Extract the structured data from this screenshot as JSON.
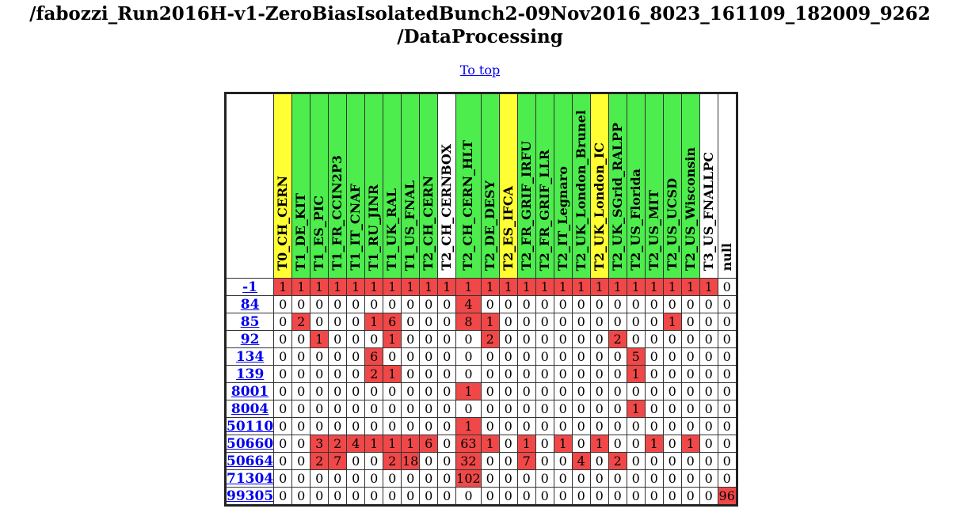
{
  "page": {
    "title_line1": "/fabozzi_Run2016H-v1-ZeroBiasIsolatedBunch2-09Nov2016_8023_161109_182009_9262",
    "title_line2": "/DataProcessing",
    "to_top_link": "To top"
  },
  "colors": {
    "tier0": "#ffff33",
    "green": "#4ced4c",
    "white": "#ffffff",
    "error_cell": "#f04848",
    "link": "#0000ee"
  },
  "sites": [
    {
      "name": "T0_CH_CERN",
      "color": "#ffff33"
    },
    {
      "name": "T1_DE_KIT",
      "color": "#4ced4c"
    },
    {
      "name": "T1_ES_PIC",
      "color": "#4ced4c"
    },
    {
      "name": "T1_FR_CCIN2P3",
      "color": "#4ced4c"
    },
    {
      "name": "T1_IT_CNAF",
      "color": "#4ced4c"
    },
    {
      "name": "T1_RU_JINR",
      "color": "#4ced4c"
    },
    {
      "name": "T1_UK_RAL",
      "color": "#4ced4c"
    },
    {
      "name": "T1_US_FNAL",
      "color": "#4ced4c"
    },
    {
      "name": "T2_CH_CERN",
      "color": "#4ced4c"
    },
    {
      "name": "T2_CH_CERNBOX",
      "color": "#ffffff"
    },
    {
      "name": "T2_CH_CERN_HLT",
      "color": "#4ced4c"
    },
    {
      "name": "T2_DE_DESY",
      "color": "#4ced4c"
    },
    {
      "name": "T2_ES_IFCA",
      "color": "#ffff33"
    },
    {
      "name": "T2_FR_GRIF_IRFU",
      "color": "#4ced4c"
    },
    {
      "name": "T2_FR_GRIF_LLR",
      "color": "#4ced4c"
    },
    {
      "name": "T2_IT_Legnaro",
      "color": "#4ced4c"
    },
    {
      "name": "T2_UK_London_Brunel",
      "color": "#4ced4c"
    },
    {
      "name": "T2_UK_London_IC",
      "color": "#ffff33"
    },
    {
      "name": "T2_UK_SGrid_RALPP",
      "color": "#4ced4c"
    },
    {
      "name": "T2_US_Florida",
      "color": "#4ced4c"
    },
    {
      "name": "T2_US_MIT",
      "color": "#4ced4c"
    },
    {
      "name": "T2_US_UCSD",
      "color": "#4ced4c"
    },
    {
      "name": "T2_US_Wisconsin",
      "color": "#4ced4c"
    },
    {
      "name": "T3_US_FNALLPC",
      "color": "#ffffff"
    },
    {
      "name": "null",
      "color": "#ffffff"
    }
  ],
  "rows": [
    {
      "code": "-1",
      "values": [
        1,
        1,
        1,
        1,
        1,
        1,
        1,
        1,
        1,
        1,
        1,
        1,
        1,
        1,
        1,
        1,
        1,
        1,
        1,
        1,
        1,
        1,
        1,
        1,
        0
      ],
      "first_value_white": false
    },
    {
      "code": "84",
      "values": [
        0,
        0,
        0,
        0,
        0,
        0,
        0,
        0,
        0,
        0,
        4,
        0,
        0,
        0,
        0,
        0,
        0,
        0,
        0,
        0,
        0,
        0,
        0,
        0,
        0
      ]
    },
    {
      "code": "85",
      "values": [
        0,
        2,
        0,
        0,
        0,
        1,
        6,
        0,
        0,
        0,
        8,
        1,
        0,
        0,
        0,
        0,
        0,
        0,
        0,
        0,
        0,
        1,
        0,
        0,
        0
      ]
    },
    {
      "code": "92",
      "values": [
        0,
        0,
        1,
        0,
        0,
        0,
        1,
        0,
        0,
        0,
        0,
        2,
        0,
        0,
        0,
        0,
        0,
        0,
        2,
        0,
        0,
        0,
        0,
        0,
        0
      ]
    },
    {
      "code": "134",
      "values": [
        0,
        0,
        0,
        0,
        0,
        6,
        0,
        0,
        0,
        0,
        0,
        0,
        0,
        0,
        0,
        0,
        0,
        0,
        0,
        5,
        0,
        0,
        0,
        0,
        0
      ]
    },
    {
      "code": "139",
      "values": [
        0,
        0,
        0,
        0,
        0,
        2,
        1,
        0,
        0,
        0,
        0,
        0,
        0,
        0,
        0,
        0,
        0,
        0,
        0,
        1,
        0,
        0,
        0,
        0,
        0
      ]
    },
    {
      "code": "8001",
      "values": [
        0,
        0,
        0,
        0,
        0,
        0,
        0,
        0,
        0,
        0,
        1,
        0,
        0,
        0,
        0,
        0,
        0,
        0,
        0,
        0,
        0,
        0,
        0,
        0,
        0
      ]
    },
    {
      "code": "8004",
      "values": [
        0,
        0,
        0,
        0,
        0,
        0,
        0,
        0,
        0,
        0,
        0,
        0,
        0,
        0,
        0,
        0,
        0,
        0,
        0,
        1,
        0,
        0,
        0,
        0,
        0
      ]
    },
    {
      "code": "50110",
      "values": [
        0,
        0,
        0,
        0,
        0,
        0,
        0,
        0,
        0,
        0,
        1,
        0,
        0,
        0,
        0,
        0,
        0,
        0,
        0,
        0,
        0,
        0,
        0,
        0,
        0
      ]
    },
    {
      "code": "50660",
      "values": [
        0,
        0,
        3,
        2,
        4,
        1,
        1,
        1,
        6,
        0,
        63,
        1,
        0,
        1,
        0,
        1,
        0,
        1,
        0,
        0,
        1,
        0,
        1,
        0,
        0
      ]
    },
    {
      "code": "50664",
      "values": [
        0,
        0,
        2,
        7,
        0,
        0,
        2,
        18,
        0,
        0,
        32,
        0,
        0,
        7,
        0,
        0,
        4,
        0,
        2,
        0,
        0,
        0,
        0,
        0,
        0
      ]
    },
    {
      "code": "71304",
      "values": [
        0,
        0,
        0,
        0,
        0,
        0,
        0,
        0,
        0,
        0,
        102,
        0,
        0,
        0,
        0,
        0,
        0,
        0,
        0,
        0,
        0,
        0,
        0,
        0,
        0
      ]
    },
    {
      "code": "99305",
      "values": [
        0,
        0,
        0,
        0,
        0,
        0,
        0,
        0,
        0,
        0,
        0,
        0,
        0,
        0,
        0,
        0,
        0,
        0,
        0,
        0,
        0,
        0,
        0,
        0,
        96
      ]
    }
  ]
}
